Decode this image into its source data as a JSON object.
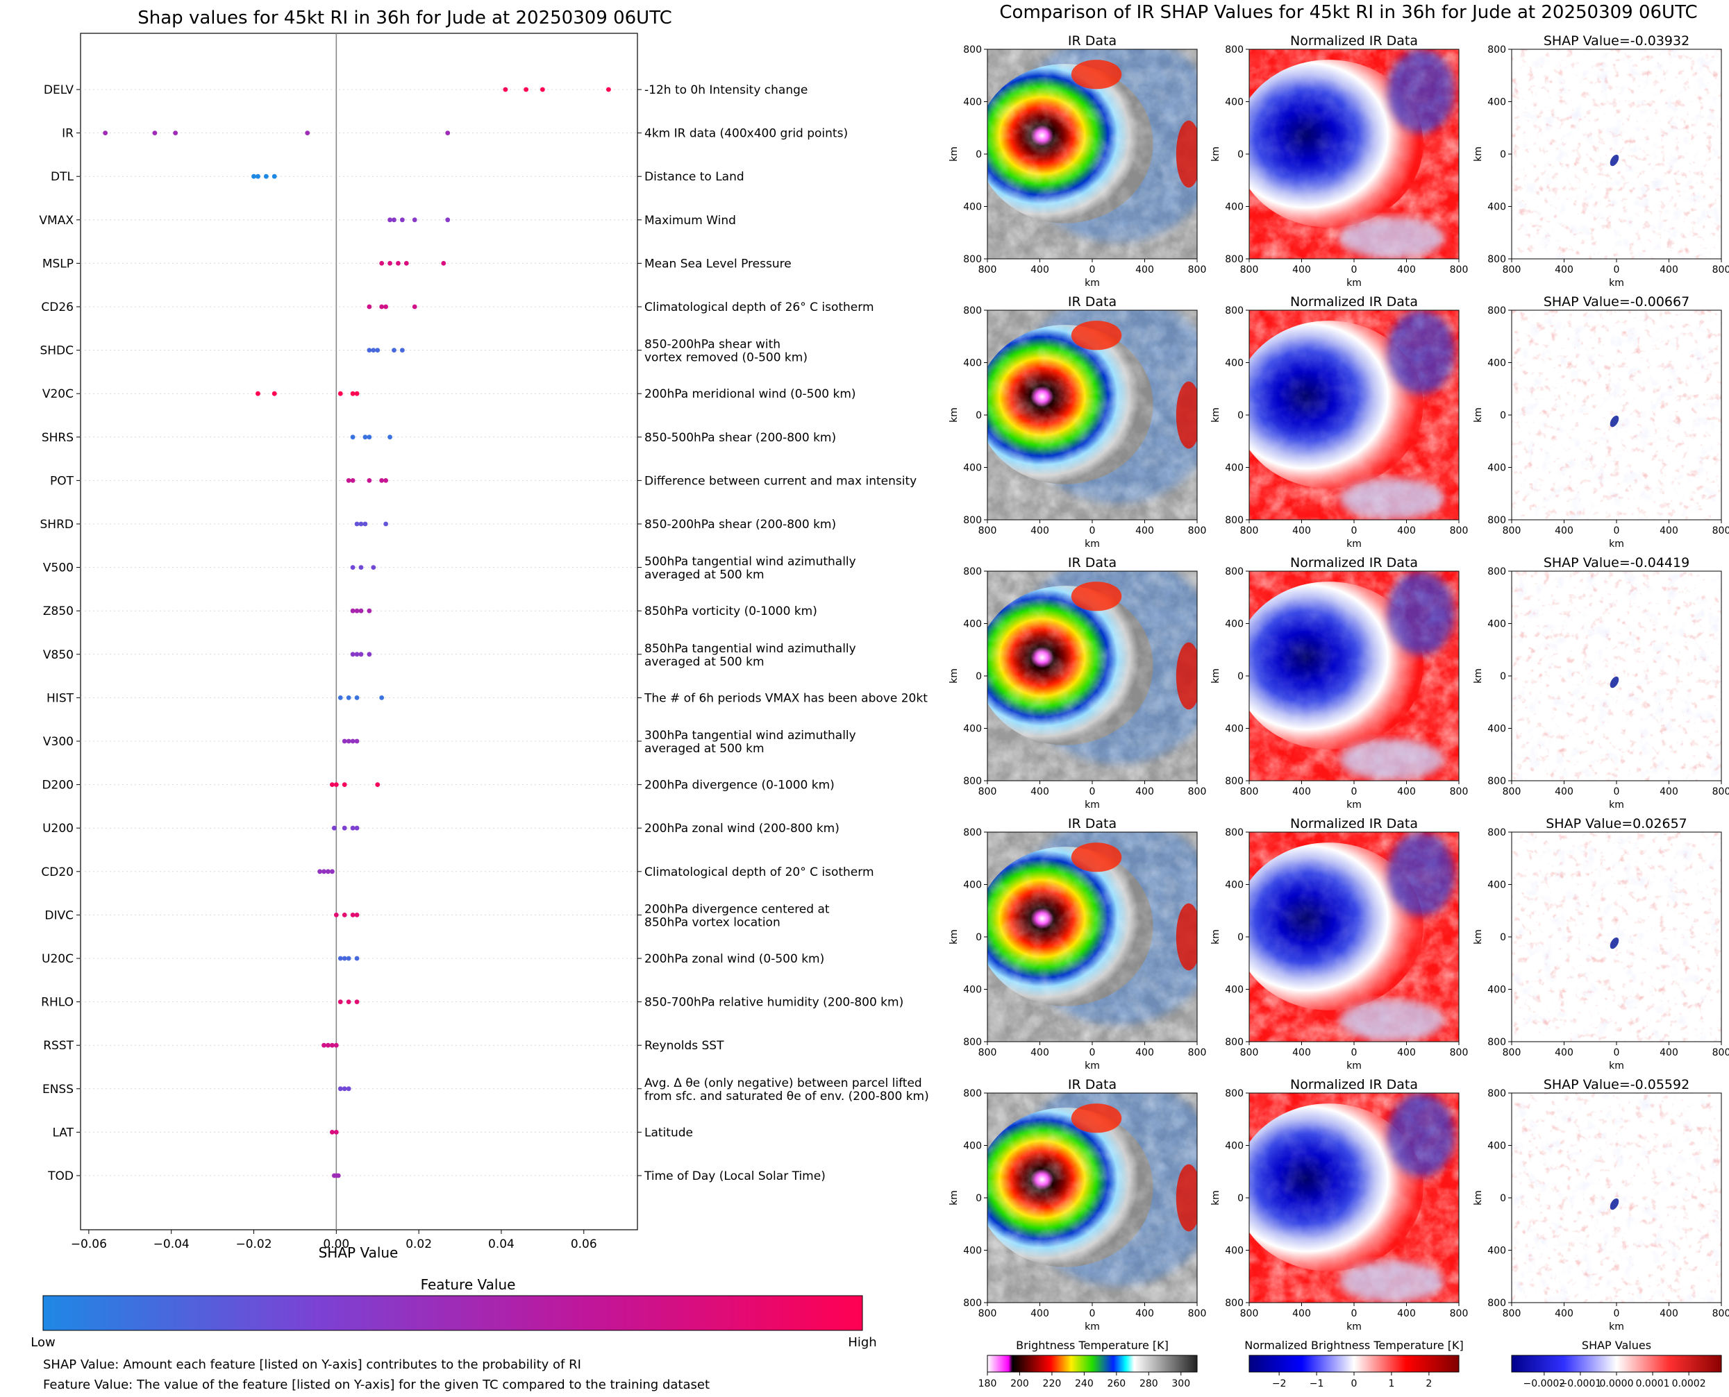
{
  "chart_data": [
    {
      "type": "scatter",
      "title": "Shap values for 45kt RI in 36h for Jude at 20250309 06UTC",
      "xlabel": "SHAP Value",
      "xlim": [
        -0.062,
        0.073
      ],
      "xticks": [
        -0.06,
        -0.04,
        -0.02,
        0.0,
        0.02,
        0.04,
        0.06
      ],
      "xtick_labels": [
        "−0.06",
        "−0.04",
        "−0.02",
        "0.00",
        "0.02",
        "0.04",
        "0.06"
      ],
      "colorbar": {
        "title": "Feature Value",
        "low": "Low",
        "high": "High",
        "colors": [
          "#1e88e5",
          "#7b42d4",
          "#c0169a",
          "#ff0052"
        ]
      },
      "features": [
        {
          "code": "DELV",
          "desc": [
            "-12h to 0h Intensity change"
          ],
          "points": [
            [
              0.041,
              1.0
            ],
            [
              0.046,
              1.0
            ],
            [
              0.05,
              1.0
            ],
            [
              0.066,
              1.0
            ]
          ]
        },
        {
          "code": "IR",
          "desc": [
            "4km IR data (400x400 grid points)"
          ],
          "points": [
            [
              -0.056,
              0.5
            ],
            [
              -0.044,
              0.5
            ],
            [
              -0.039,
              0.5
            ],
            [
              -0.007,
              0.5
            ],
            [
              0.027,
              0.5
            ]
          ]
        },
        {
          "code": "DTL",
          "desc": [
            "Distance to Land"
          ],
          "points": [
            [
              -0.02,
              0.0
            ],
            [
              -0.019,
              0.0
            ],
            [
              -0.017,
              0.0
            ],
            [
              -0.015,
              0.0
            ]
          ]
        },
        {
          "code": "VMAX",
          "desc": [
            "Maximum Wind"
          ],
          "points": [
            [
              0.013,
              0.4
            ],
            [
              0.014,
              0.4
            ],
            [
              0.016,
              0.4
            ],
            [
              0.019,
              0.4
            ],
            [
              0.027,
              0.4
            ]
          ]
        },
        {
          "code": "MSLP",
          "desc": [
            "Mean Sea Level Pressure"
          ],
          "points": [
            [
              0.011,
              0.8
            ],
            [
              0.013,
              0.8
            ],
            [
              0.015,
              0.8
            ],
            [
              0.017,
              0.8
            ],
            [
              0.026,
              0.8
            ]
          ]
        },
        {
          "code": "CD26",
          "desc": [
            "Climatological depth of 26° C isotherm"
          ],
          "points": [
            [
              0.008,
              0.75
            ],
            [
              0.011,
              0.75
            ],
            [
              0.012,
              0.75
            ],
            [
              0.019,
              0.75
            ]
          ]
        },
        {
          "code": "SHDC",
          "desc": [
            "850-200hPa shear with",
            "vortex removed (0-500 km)"
          ],
          "points": [
            [
              0.008,
              0.15
            ],
            [
              0.009,
              0.15
            ],
            [
              0.01,
              0.15
            ],
            [
              0.014,
              0.15
            ],
            [
              0.016,
              0.15
            ]
          ]
        },
        {
          "code": "V20C",
          "desc": [
            "200hPa meridional wind (0-500 km)"
          ],
          "points": [
            [
              -0.019,
              1.0
            ],
            [
              -0.015,
              1.0
            ],
            [
              0.001,
              1.0
            ],
            [
              0.004,
              1.0
            ],
            [
              0.005,
              1.0
            ]
          ]
        },
        {
          "code": "SHRS",
          "desc": [
            "850-500hPa shear (200-800 km)"
          ],
          "points": [
            [
              0.004,
              0.1
            ],
            [
              0.007,
              0.1
            ],
            [
              0.008,
              0.1
            ],
            [
              0.013,
              0.1
            ]
          ]
        },
        {
          "code": "POT",
          "desc": [
            "Difference between current and max intensity"
          ],
          "points": [
            [
              0.003,
              0.7
            ],
            [
              0.004,
              0.7
            ],
            [
              0.008,
              0.7
            ],
            [
              0.011,
              0.7
            ],
            [
              0.012,
              0.7
            ]
          ]
        },
        {
          "code": "SHRD",
          "desc": [
            "850-200hPa shear (200-800 km)"
          ],
          "points": [
            [
              0.005,
              0.25
            ],
            [
              0.006,
              0.25
            ],
            [
              0.007,
              0.25
            ],
            [
              0.012,
              0.25
            ]
          ]
        },
        {
          "code": "V500",
          "desc": [
            "500hPa tangential wind azimuthally",
            "averaged at 500 km"
          ],
          "points": [
            [
              0.004,
              0.3
            ],
            [
              0.006,
              0.3
            ],
            [
              0.009,
              0.3
            ]
          ]
        },
        {
          "code": "Z850",
          "desc": [
            "850hPa vorticity (0-1000 km)"
          ],
          "points": [
            [
              0.004,
              0.55
            ],
            [
              0.005,
              0.55
            ],
            [
              0.006,
              0.55
            ],
            [
              0.008,
              0.55
            ]
          ]
        },
        {
          "code": "V850",
          "desc": [
            "850hPa tangential wind azimuthally",
            "averaged at 500 km"
          ],
          "points": [
            [
              0.004,
              0.4
            ],
            [
              0.005,
              0.4
            ],
            [
              0.006,
              0.4
            ],
            [
              0.008,
              0.4
            ]
          ]
        },
        {
          "code": "HIST",
          "desc": [
            "The # of 6h periods VMAX has been above 20kt"
          ],
          "points": [
            [
              0.001,
              0.1
            ],
            [
              0.003,
              0.1
            ],
            [
              0.005,
              0.1
            ],
            [
              0.011,
              0.1
            ]
          ]
        },
        {
          "code": "V300",
          "desc": [
            "300hPa tangential wind azimuthally",
            "averaged at 500 km"
          ],
          "points": [
            [
              0.002,
              0.45
            ],
            [
              0.003,
              0.45
            ],
            [
              0.004,
              0.45
            ],
            [
              0.005,
              0.45
            ]
          ]
        },
        {
          "code": "D200",
          "desc": [
            "200hPa divergence (0-1000 km)"
          ],
          "points": [
            [
              -0.001,
              0.95
            ],
            [
              0.0,
              0.95
            ],
            [
              0.002,
              0.95
            ],
            [
              0.01,
              0.95
            ]
          ]
        },
        {
          "code": "U200",
          "desc": [
            "200hPa zonal wind (200-800 km)"
          ],
          "points": [
            [
              -0.0005,
              0.35
            ],
            [
              0.002,
              0.35
            ],
            [
              0.004,
              0.35
            ],
            [
              0.005,
              0.35
            ]
          ]
        },
        {
          "code": "CD20",
          "desc": [
            "Climatological depth of 20° C isotherm"
          ],
          "points": [
            [
              -0.004,
              0.45
            ],
            [
              -0.003,
              0.45
            ],
            [
              -0.002,
              0.45
            ],
            [
              -0.001,
              0.45
            ]
          ]
        },
        {
          "code": "DIVC",
          "desc": [
            "200hPa divergence centered at",
            "850hPa vortex location"
          ],
          "points": [
            [
              0.0,
              0.85
            ],
            [
              0.002,
              0.85
            ],
            [
              0.004,
              0.85
            ],
            [
              0.005,
              0.85
            ]
          ]
        },
        {
          "code": "U20C",
          "desc": [
            "200hPa zonal wind (0-500 km)"
          ],
          "points": [
            [
              0.001,
              0.15
            ],
            [
              0.002,
              0.15
            ],
            [
              0.003,
              0.15
            ],
            [
              0.005,
              0.15
            ]
          ]
        },
        {
          "code": "RHLO",
          "desc": [
            "850-700hPa relative humidity (200-800 km)"
          ],
          "points": [
            [
              0.001,
              0.85
            ],
            [
              0.003,
              0.85
            ],
            [
              0.005,
              0.85
            ]
          ]
        },
        {
          "code": "RSST",
          "desc": [
            "Reynolds SST"
          ],
          "points": [
            [
              -0.003,
              0.75
            ],
            [
              -0.002,
              0.75
            ],
            [
              -0.001,
              0.75
            ],
            [
              0.0,
              0.75
            ]
          ]
        },
        {
          "code": "ENSS",
          "desc": [
            "Avg. Δ θe (only negative) between parcel lifted",
            "from sfc. and saturated θe of env. (200-800 km)"
          ],
          "points": [
            [
              0.001,
              0.3
            ],
            [
              0.002,
              0.3
            ],
            [
              0.003,
              0.3
            ]
          ]
        },
        {
          "code": "LAT",
          "desc": [
            "Latitude"
          ],
          "points": [
            [
              -0.001,
              0.8
            ],
            [
              0.0,
              0.8
            ]
          ]
        },
        {
          "code": "TOD",
          "desc": [
            "Time of Day (Local Solar Time)"
          ],
          "points": [
            [
              -0.0005,
              0.5
            ],
            [
              0.0,
              0.5
            ],
            [
              0.0005,
              0.5
            ]
          ]
        }
      ],
      "footnotes": [
        "SHAP Value: Amount each feature [listed on Y-axis] contributes to the probability of RI",
        "Feature Value: The value of the feature [listed on Y-axis] for the given TC compared to the training dataset"
      ]
    },
    {
      "type": "heatmap",
      "title": "Comparison of IR SHAP Values for 45kt RI in 36h for Jude at 20250309 06UTC",
      "panel_titles": [
        "IR Data",
        "Normalized IR Data"
      ],
      "shap_titles": [
        "SHAP Value=-0.03932",
        "SHAP Value=-0.00667",
        "SHAP Value=-0.04419",
        "SHAP Value=0.02657",
        "SHAP Value=-0.05592"
      ],
      "axis_label": "km",
      "ticks": [
        "800",
        "400",
        "0",
        "400",
        "800"
      ],
      "colorbars": [
        {
          "title": "Brightness Temperature [K]",
          "ticks": [
            "180",
            "200",
            "220",
            "240",
            "260",
            "280",
            "300"
          ],
          "range": [
            180,
            310
          ]
        },
        {
          "title": "Normalized Brightness Temperature [K]",
          "ticks": [
            "−2",
            "−1",
            "0",
            "1",
            "2"
          ],
          "range": [
            -2.8,
            2.8
          ]
        },
        {
          "title": "SHAP Values",
          "ticks": [
            "−0.0002",
            "−0.0001",
            "0.0000",
            "0.0001",
            "0.0002"
          ],
          "range": [
            -0.00029,
            0.00029
          ]
        }
      ]
    }
  ]
}
